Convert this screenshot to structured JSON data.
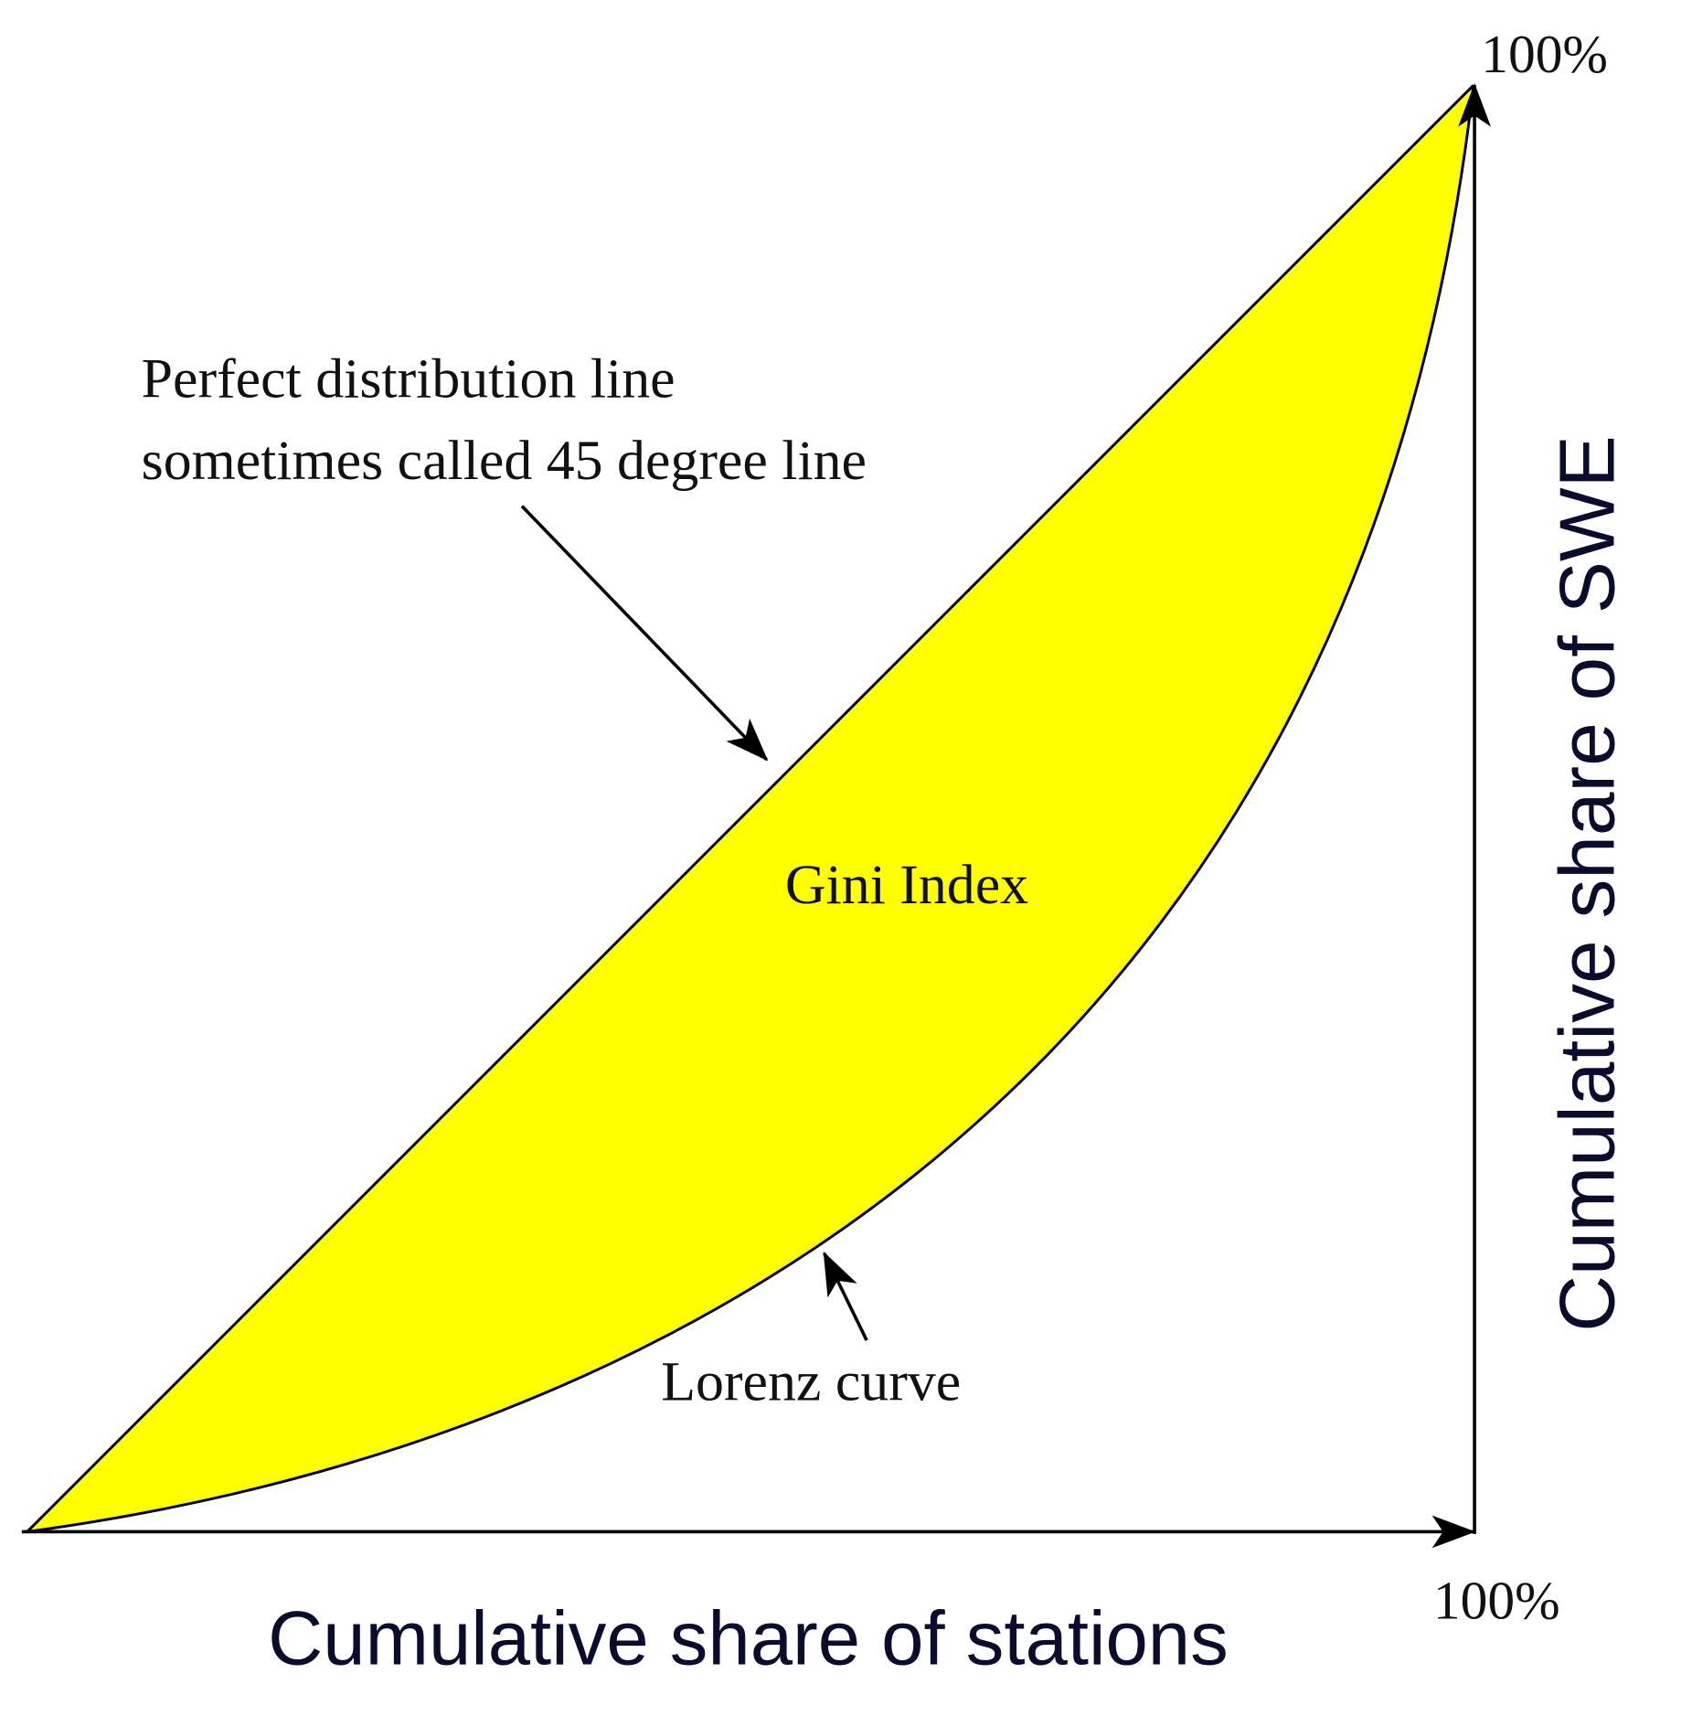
{
  "labels": {
    "y_max": "100%",
    "x_max": "100%",
    "perfect_line_1": "Perfect distribution line",
    "perfect_line_2": "sometimes called 45 degree line",
    "gini": "Gini Index",
    "lorenz": "Lorenz curve",
    "x_axis": "Cumulative share of stations",
    "y_axis": "Cumulative share of SWE"
  }
}
